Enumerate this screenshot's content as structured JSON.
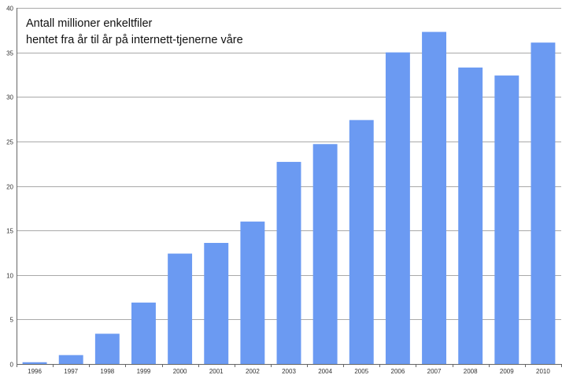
{
  "chart_data": {
    "type": "bar",
    "title": "Antall millioner enkeltfiler",
    "subtitle": "hentet fra år til år på internett-tjenerne våre",
    "xlabel": "",
    "ylabel": "",
    "categories": [
      "1996",
      "1997",
      "1998",
      "1999",
      "2000",
      "2001",
      "2002",
      "2003",
      "2004",
      "2005",
      "2006",
      "2007",
      "2008",
      "2009",
      "2010"
    ],
    "values": [
      0.2,
      1.0,
      3.4,
      6.9,
      12.4,
      13.6,
      16.0,
      22.7,
      24.7,
      27.4,
      35.0,
      37.3,
      33.3,
      32.4,
      36.1
    ],
    "ylim": [
      0,
      40
    ],
    "yticks": [
      "0",
      "5",
      "10",
      "15",
      "20",
      "25",
      "30",
      "35",
      "40"
    ],
    "grid": true,
    "bar_color": "#6b9af2",
    "grid_color": "#a9a9a9",
    "axis_color": "#666666"
  }
}
